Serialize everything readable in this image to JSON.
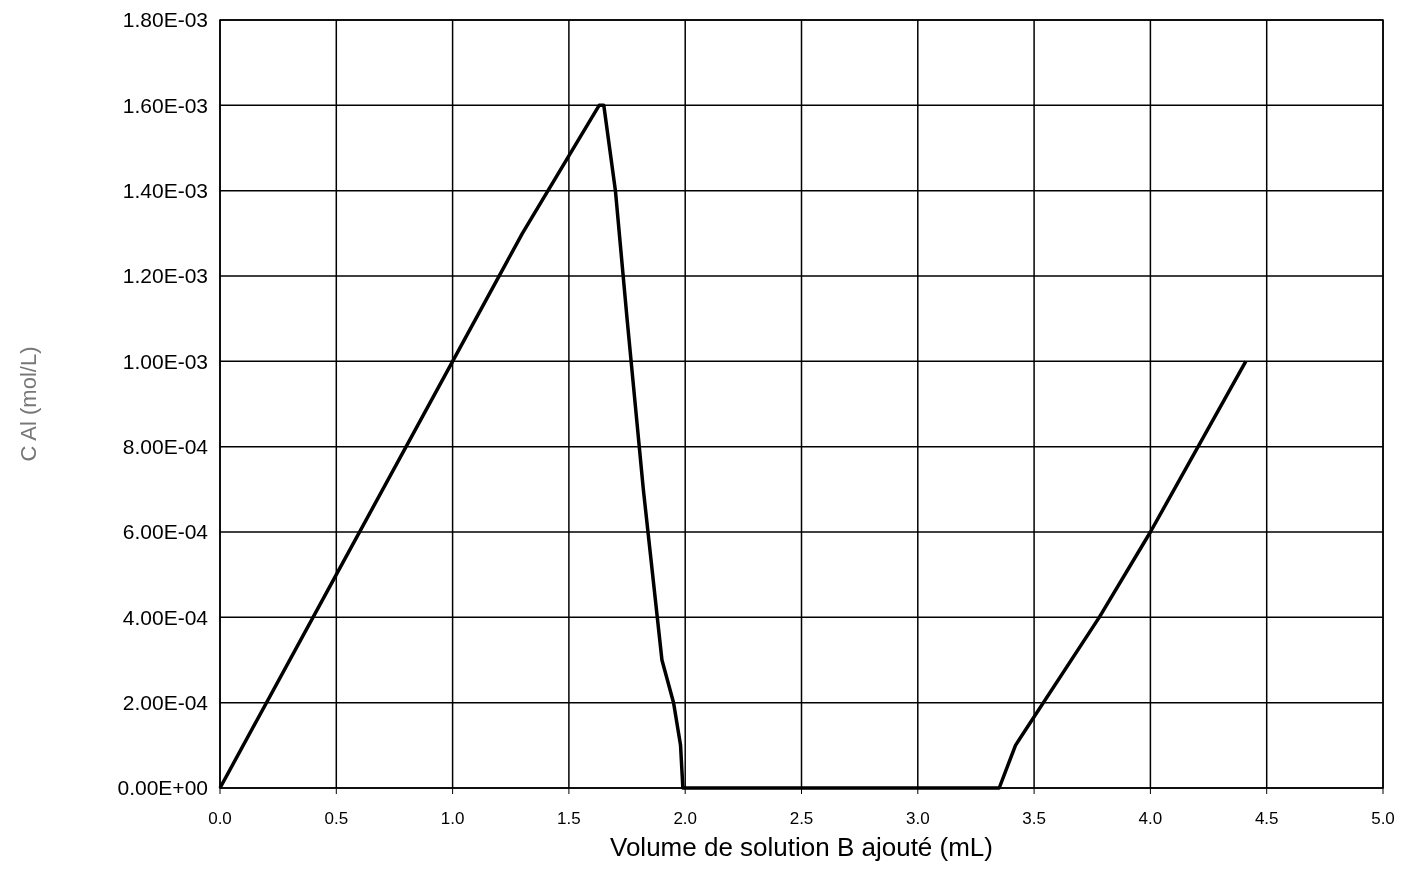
{
  "chart_data": {
    "type": "line",
    "xlabel": "Volume de solution B ajouté (mL)",
    "ylabel": "C Al (mol/L)",
    "xlim": [
      0,
      5
    ],
    "ylim": [
      0,
      0.0018
    ],
    "xticks": [
      {
        "value": 0,
        "label": "0.0"
      },
      {
        "value": 0.5,
        "label": "0.5"
      },
      {
        "value": 1,
        "label": "1.0"
      },
      {
        "value": 1.5,
        "label": "1.5"
      },
      {
        "value": 2,
        "label": "2.0"
      },
      {
        "value": 2.5,
        "label": "2.5"
      },
      {
        "value": 3,
        "label": "3.0"
      },
      {
        "value": 3.5,
        "label": "3.5"
      },
      {
        "value": 4,
        "label": "4.0"
      },
      {
        "value": 4.5,
        "label": "4.5"
      },
      {
        "value": 5,
        "label": "5.0"
      }
    ],
    "yticks": [
      {
        "value": 0,
        "label": "0.00E+00"
      },
      {
        "value": 0.0002,
        "label": "2.00E-04"
      },
      {
        "value": 0.0004,
        "label": "4.00E-04"
      },
      {
        "value": 0.0006,
        "label": "6.00E-04"
      },
      {
        "value": 0.0008,
        "label": "8.00E-04"
      },
      {
        "value": 0.001,
        "label": "1.00E-03"
      },
      {
        "value": 0.0012,
        "label": "1.20E-03"
      },
      {
        "value": 0.0014,
        "label": "1.40E-03"
      },
      {
        "value": 0.0016,
        "label": "1.60E-03"
      },
      {
        "value": 0.0018,
        "label": "1.80E-03"
      }
    ],
    "grid": true,
    "marker": "none",
    "x": [
      0,
      0.5,
      1,
      1.3,
      1.63,
      1.65,
      1.7,
      1.75,
      1.82,
      1.9,
      1.95,
      1.98,
      1.99,
      3.35,
      3.42,
      3.78,
      4,
      4.41
    ],
    "series": [
      {
        "color": "#000000",
        "values": [
          0,
          0.0005,
          0.001,
          0.0013,
          0.0016,
          0.0016,
          0.0014,
          0.0011,
          0.0007,
          0.0003,
          0.0002,
          0.0001,
          0,
          0,
          0.0001,
          0.0004,
          0.0006,
          0.001
        ]
      }
    ]
  }
}
